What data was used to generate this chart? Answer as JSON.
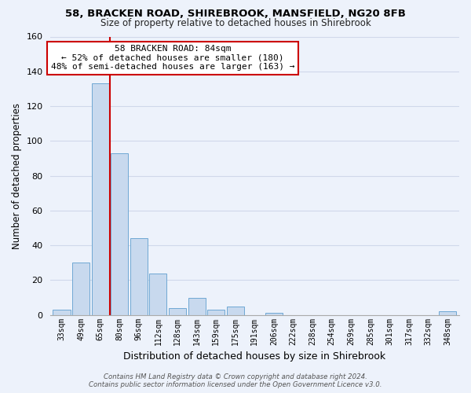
{
  "title1": "58, BRACKEN ROAD, SHIREBROOK, MANSFIELD, NG20 8FB",
  "title2": "Size of property relative to detached houses in Shirebrook",
  "xlabel": "Distribution of detached houses by size in Shirebrook",
  "ylabel": "Number of detached properties",
  "footer1": "Contains HM Land Registry data © Crown copyright and database right 2024.",
  "footer2": "Contains public sector information licensed under the Open Government Licence v3.0.",
  "bin_labels": [
    "33sqm",
    "49sqm",
    "65sqm",
    "80sqm",
    "96sqm",
    "112sqm",
    "128sqm",
    "143sqm",
    "159sqm",
    "175sqm",
    "191sqm",
    "206sqm",
    "222sqm",
    "238sqm",
    "254sqm",
    "269sqm",
    "285sqm",
    "301sqm",
    "317sqm",
    "332sqm",
    "348sqm"
  ],
  "bar_values": [
    3,
    30,
    133,
    93,
    44,
    24,
    4,
    10,
    3,
    5,
    0,
    1,
    0,
    0,
    0,
    0,
    0,
    0,
    0,
    0,
    2
  ],
  "bar_color": "#c8d9ee",
  "bar_edge_color": "#6fa8d4",
  "reference_line_color": "#cc0000",
  "ylim": [
    0,
    160
  ],
  "yticks": [
    0,
    20,
    40,
    60,
    80,
    100,
    120,
    140,
    160
  ],
  "annotation_title": "58 BRACKEN ROAD: 84sqm",
  "annotation_line1": "← 52% of detached houses are smaller (180)",
  "annotation_line2": "48% of semi-detached houses are larger (163) →",
  "annotation_box_facecolor": "#ffffff",
  "annotation_box_edgecolor": "#cc0000",
  "bg_color": "#edf2fb",
  "grid_color": "#d0d8ea"
}
